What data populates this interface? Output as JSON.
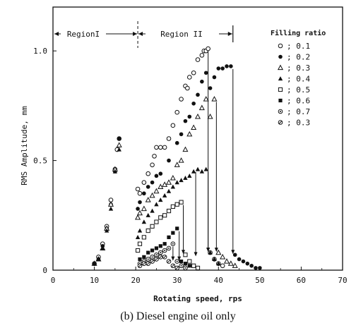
{
  "chart_data": {
    "type": "scatter",
    "title": "",
    "xlabel": "Rotating speed, rps",
    "ylabel": "RMS Amplitude, mm",
    "xlim": [
      0,
      70
    ],
    "ylim": [
      0,
      1.2
    ],
    "x_ticks": [
      "0",
      "10",
      "20",
      "30",
      "40",
      "50",
      "60",
      "70"
    ],
    "y_ticks": [
      "0",
      "0.5",
      "1.0"
    ],
    "x_tick_values": [
      0,
      10,
      20,
      30,
      40,
      50,
      60,
      70
    ],
    "y_tick_values": [
      0,
      0.5,
      1.0
    ],
    "grid": false,
    "legend_title": "Filling ratio",
    "legend_position": "top-right",
    "regions": [
      {
        "label": "RegionI",
        "x_start": 0,
        "x_end": 20.5
      },
      {
        "label": "Region II",
        "x_start": 20.5,
        "x_end": 43.5
      }
    ],
    "series": [
      {
        "name": "0.1",
        "marker": "circle-open",
        "points": [
          [
            10,
            0.03
          ],
          [
            11,
            0.06
          ],
          [
            12,
            0.12
          ],
          [
            13,
            0.2
          ],
          [
            14,
            0.32
          ],
          [
            15,
            0.46
          ],
          [
            15.5,
            0.55
          ],
          [
            16,
            0.6
          ],
          [
            20.5,
            0.37
          ],
          [
            21,
            0.35
          ],
          [
            22,
            0.4
          ],
          [
            23,
            0.44
          ],
          [
            24,
            0.48
          ],
          [
            24.5,
            0.52
          ],
          [
            25,
            0.56
          ],
          [
            26,
            0.56
          ],
          [
            27,
            0.56
          ],
          [
            28,
            0.6
          ],
          [
            29,
            0.66
          ],
          [
            30,
            0.72
          ],
          [
            31,
            0.78
          ],
          [
            32,
            0.84
          ],
          [
            32.5,
            0.83
          ],
          [
            33,
            0.88
          ],
          [
            34,
            0.9
          ],
          [
            35,
            0.96
          ],
          [
            36,
            0.98
          ],
          [
            36.5,
            1.0
          ],
          [
            37,
            1.0
          ],
          [
            37.5,
            1.01
          ],
          [
            38,
            0.08
          ],
          [
            39,
            0.05
          ],
          [
            40,
            0.03
          ],
          [
            41,
            0.02
          ]
        ]
      },
      {
        "name": "0.2",
        "marker": "circle-filled",
        "points": [
          [
            10,
            0.03
          ],
          [
            11,
            0.05
          ],
          [
            12,
            0.11
          ],
          [
            13,
            0.19
          ],
          [
            14,
            0.3
          ],
          [
            15,
            0.45
          ],
          [
            16,
            0.6
          ],
          [
            20.5,
            0.28
          ],
          [
            21,
            0.31
          ],
          [
            22,
            0.35
          ],
          [
            23,
            0.38
          ],
          [
            24,
            0.4
          ],
          [
            25,
            0.43
          ],
          [
            26,
            0.44
          ],
          [
            28,
            0.5
          ],
          [
            30,
            0.58
          ],
          [
            31,
            0.62
          ],
          [
            32,
            0.68
          ],
          [
            33,
            0.7
          ],
          [
            34,
            0.76
          ],
          [
            35,
            0.8
          ],
          [
            36,
            0.86
          ],
          [
            37,
            0.9
          ],
          [
            38,
            0.83
          ],
          [
            39,
            0.88
          ],
          [
            40,
            0.92
          ],
          [
            41,
            0.92
          ],
          [
            42,
            0.93
          ],
          [
            43,
            0.93
          ],
          [
            44,
            0.07
          ],
          [
            45,
            0.05
          ],
          [
            46,
            0.04
          ],
          [
            47,
            0.03
          ],
          [
            48,
            0.02
          ],
          [
            49,
            0.01
          ],
          [
            50,
            0.01
          ]
        ]
      },
      {
        "name": "0.3",
        "marker": "triangle-open",
        "points": [
          [
            10,
            0.03
          ],
          [
            11,
            0.05
          ],
          [
            12,
            0.1
          ],
          [
            13,
            0.19
          ],
          [
            14,
            0.3
          ],
          [
            15,
            0.46
          ],
          [
            16,
            0.57
          ],
          [
            20.5,
            0.24
          ],
          [
            21,
            0.26
          ],
          [
            22,
            0.28
          ],
          [
            23,
            0.32
          ],
          [
            24,
            0.34
          ],
          [
            25,
            0.36
          ],
          [
            26,
            0.38
          ],
          [
            27,
            0.39
          ],
          [
            28,
            0.4
          ],
          [
            29,
            0.42
          ],
          [
            30,
            0.48
          ],
          [
            31,
            0.5
          ],
          [
            32,
            0.55
          ],
          [
            33,
            0.62
          ],
          [
            34,
            0.65
          ],
          [
            35,
            0.7
          ],
          [
            36,
            0.74
          ],
          [
            37,
            0.78
          ],
          [
            38,
            0.7
          ],
          [
            39,
            0.78
          ],
          [
            40,
            0.08
          ],
          [
            41,
            0.06
          ],
          [
            42,
            0.04
          ],
          [
            43,
            0.03
          ],
          [
            44,
            0.02
          ]
        ]
      },
      {
        "name": "0.4",
        "marker": "triangle-filled",
        "points": [
          [
            10,
            0.03
          ],
          [
            11,
            0.05
          ],
          [
            12,
            0.1
          ],
          [
            13,
            0.18
          ],
          [
            14,
            0.28
          ],
          [
            15,
            0.45
          ],
          [
            16,
            0.55
          ],
          [
            20.5,
            0.15
          ],
          [
            21,
            0.18
          ],
          [
            22,
            0.22
          ],
          [
            23,
            0.25
          ],
          [
            24,
            0.27
          ],
          [
            25,
            0.3
          ],
          [
            26,
            0.32
          ],
          [
            27,
            0.34
          ],
          [
            28,
            0.36
          ],
          [
            29,
            0.38
          ],
          [
            30,
            0.4
          ],
          [
            31,
            0.41
          ],
          [
            32,
            0.42
          ],
          [
            33,
            0.43
          ],
          [
            34,
            0.45
          ],
          [
            35,
            0.46
          ],
          [
            36,
            0.45
          ],
          [
            37,
            0.46
          ],
          [
            38,
            0.08
          ],
          [
            39,
            0.05
          ],
          [
            40,
            0.03
          ]
        ]
      },
      {
        "name": "0.5",
        "marker": "square-open",
        "points": [
          [
            20.5,
            0.09
          ],
          [
            21,
            0.12
          ],
          [
            22,
            0.15
          ],
          [
            23,
            0.18
          ],
          [
            24,
            0.2
          ],
          [
            25,
            0.22
          ],
          [
            26,
            0.24
          ],
          [
            27,
            0.25
          ],
          [
            28,
            0.27
          ],
          [
            29,
            0.29
          ],
          [
            30,
            0.3
          ],
          [
            31,
            0.31
          ],
          [
            32,
            0.07
          ],
          [
            33,
            0.04
          ],
          [
            34,
            0.02
          ],
          [
            35,
            0.01
          ]
        ]
      },
      {
        "name": "0.6",
        "marker": "square-filled",
        "points": [
          [
            21,
            0.05
          ],
          [
            22,
            0.06
          ],
          [
            23,
            0.08
          ],
          [
            24,
            0.09
          ],
          [
            25,
            0.1
          ],
          [
            26,
            0.11
          ],
          [
            27,
            0.12
          ],
          [
            28,
            0.15
          ],
          [
            29,
            0.17
          ],
          [
            30,
            0.19
          ],
          [
            31,
            0.04
          ],
          [
            32,
            0.03
          ],
          [
            33,
            0.02
          ]
        ]
      },
      {
        "name": "0.7",
        "marker": "circle-dot",
        "points": [
          [
            21,
            0.03
          ],
          [
            22,
            0.04
          ],
          [
            23,
            0.05
          ],
          [
            24,
            0.06
          ],
          [
            25,
            0.07
          ],
          [
            26,
            0.08
          ],
          [
            27,
            0.09
          ],
          [
            28,
            0.1
          ],
          [
            29,
            0.12
          ],
          [
            30,
            0.04
          ],
          [
            31,
            0.02
          ],
          [
            32,
            0.01
          ]
        ]
      },
      {
        "name": "0.3",
        "marker": "circle-slash",
        "points": [
          [
            21,
            0.02
          ],
          [
            22,
            0.03
          ],
          [
            23,
            0.03
          ],
          [
            24,
            0.04
          ],
          [
            25,
            0.05
          ],
          [
            26,
            0.06
          ],
          [
            27,
            0.06
          ],
          [
            28,
            0.04
          ],
          [
            29,
            0.02
          ],
          [
            30,
            0.01
          ]
        ]
      }
    ],
    "jump_arrows": [
      {
        "x": 37.5,
        "from": 1.01,
        "to": 0.08
      },
      {
        "x": 39.5,
        "from": 0.78,
        "to": 0.08
      },
      {
        "x": 43.5,
        "from": 0.93,
        "to": 0.07
      },
      {
        "x": 37.5,
        "from": 0.46,
        "to": 0.08
      },
      {
        "x": 34.5,
        "from": 0.46,
        "to": 0.06
      },
      {
        "x": 31.5,
        "from": 0.31,
        "to": 0.07
      },
      {
        "x": 30.5,
        "from": 0.19,
        "to": 0.04
      },
      {
        "x": 29,
        "from": 0.12,
        "to": 0.04
      }
    ]
  },
  "caption": "(b) Diesel engine oil only"
}
